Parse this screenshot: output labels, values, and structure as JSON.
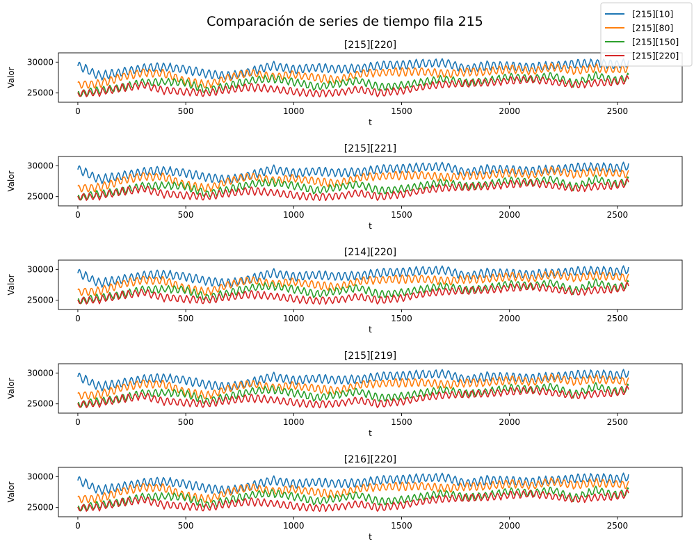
{
  "suptitle": "Comparación de series de tiempo fila 215",
  "legend": {
    "placement": "top-right",
    "entries": [
      {
        "label": "[215][10]",
        "color": "#1f77b4"
      },
      {
        "label": "[215][80]",
        "color": "#ff7f0e"
      },
      {
        "label": "[215][150]",
        "color": "#2ca02c"
      },
      {
        "label": "[215][220]",
        "color": "#d62728"
      }
    ]
  },
  "chart_data": [
    {
      "type": "line",
      "title": "[215][220]",
      "xlabel": "t",
      "ylabel": "Valor",
      "xlim": [
        -90,
        2800
      ],
      "ylim": [
        23500,
        31500
      ],
      "xticks": [
        0,
        500,
        1000,
        1500,
        2000,
        2500
      ],
      "yticks": [
        25000,
        30000
      ],
      "x_step": 100,
      "grid": false,
      "series": [
        {
          "name": "[215][10]",
          "color": "#1f77b4",
          "values": [
            29500,
            27800,
            28300,
            29000,
            29200,
            28800,
            28100,
            27700,
            28500,
            29400,
            28800,
            29100,
            28900,
            29000,
            29400,
            29600,
            29800,
            29900,
            28900,
            29500,
            29300,
            29200,
            29400,
            29700,
            29800,
            29600,
            30200
          ]
        },
        {
          "name": "[215][80]",
          "color": "#ff7f0e",
          "values": [
            26300,
            26500,
            27600,
            28300,
            28200,
            26900,
            26300,
            27500,
            28300,
            27600,
            28000,
            27500,
            27100,
            28100,
            28300,
            28400,
            28500,
            28100,
            28400,
            28500,
            28900,
            28500,
            29200,
            28600,
            29000,
            28800,
            29200
          ]
        },
        {
          "name": "[215][150]",
          "color": "#2ca02c",
          "values": [
            24800,
            25400,
            25900,
            26700,
            26800,
            26700,
            25400,
            26200,
            27000,
            27300,
            26800,
            26000,
            26500,
            27000,
            26000,
            26200,
            26800,
            27300,
            26600,
            27000,
            27600,
            27300,
            27800,
            26500,
            27800,
            27000,
            28200
          ]
        },
        {
          "name": "[215][220]",
          "color": "#d62728",
          "values": [
            24900,
            25100,
            25800,
            26300,
            25400,
            25200,
            25000,
            25600,
            25900,
            25700,
            25200,
            24900,
            25100,
            25600,
            24900,
            25400,
            26000,
            26400,
            26500,
            26700,
            27000,
            27200,
            26800,
            26300,
            26600,
            26800,
            27600
          ]
        }
      ]
    },
    {
      "type": "line",
      "title": "[215][221]",
      "xlabel": "t",
      "ylabel": "Valor",
      "xlim": [
        -90,
        2800
      ],
      "ylim": [
        23500,
        31500
      ],
      "xticks": [
        0,
        500,
        1000,
        1500,
        2000,
        2500
      ],
      "yticks": [
        25000,
        30000
      ],
      "x_step": 100,
      "grid": false,
      "series": [
        {
          "name": "[215][10]",
          "color": "#1f77b4",
          "values": [
            29500,
            27800,
            28300,
            29000,
            29200,
            28800,
            28100,
            27700,
            28500,
            29400,
            28800,
            29100,
            28900,
            29000,
            29400,
            29600,
            29800,
            29900,
            28900,
            29500,
            29300,
            29200,
            29400,
            29700,
            29800,
            29600,
            30400
          ]
        },
        {
          "name": "[215][80]",
          "color": "#ff7f0e",
          "values": [
            26300,
            26500,
            27600,
            28300,
            28200,
            26900,
            26300,
            27500,
            28300,
            27600,
            28000,
            27500,
            27100,
            28100,
            28300,
            28400,
            28500,
            28100,
            28400,
            28500,
            28900,
            28500,
            29200,
            28600,
            29000,
            28800,
            28500
          ]
        },
        {
          "name": "[215][150]",
          "color": "#2ca02c",
          "values": [
            24800,
            25400,
            25900,
            26700,
            26800,
            26700,
            25400,
            26200,
            27000,
            27300,
            26800,
            26000,
            26500,
            27000,
            26000,
            26200,
            26800,
            27300,
            26600,
            27000,
            27600,
            27300,
            27800,
            26500,
            27800,
            27000,
            28200
          ]
        },
        {
          "name": "[215][220]",
          "color": "#d62728",
          "values": [
            24900,
            25100,
            25800,
            26300,
            25400,
            25200,
            25000,
            25600,
            25900,
            25700,
            25200,
            24900,
            25100,
            25600,
            24900,
            25400,
            26000,
            26400,
            26500,
            26700,
            27000,
            27200,
            26800,
            26300,
            26600,
            26800,
            27800
          ]
        }
      ]
    },
    {
      "type": "line",
      "title": "[214][220]",
      "xlabel": "t",
      "ylabel": "Valor",
      "xlim": [
        -90,
        2800
      ],
      "ylim": [
        23500,
        31500
      ],
      "xticks": [
        0,
        500,
        1000,
        1500,
        2000,
        2500
      ],
      "yticks": [
        25000,
        30000
      ],
      "x_step": 100,
      "grid": false,
      "series": [
        {
          "name": "[215][10]",
          "color": "#1f77b4",
          "values": [
            29500,
            27800,
            28300,
            29000,
            29200,
            28800,
            28100,
            27700,
            28500,
            29400,
            28800,
            29100,
            28900,
            29000,
            29400,
            29600,
            29800,
            29900,
            28900,
            29500,
            29300,
            29200,
            29400,
            29700,
            29800,
            29600,
            30400
          ]
        },
        {
          "name": "[215][80]",
          "color": "#ff7f0e",
          "values": [
            26300,
            26500,
            27600,
            28300,
            28200,
            26900,
            26300,
            27500,
            28300,
            27600,
            28000,
            27500,
            27100,
            28100,
            28300,
            28400,
            28500,
            28100,
            28400,
            28500,
            28900,
            28500,
            29200,
            28600,
            29000,
            28800,
            28500
          ]
        },
        {
          "name": "[215][150]",
          "color": "#2ca02c",
          "values": [
            24800,
            25400,
            25900,
            26700,
            26800,
            26700,
            25400,
            26200,
            27000,
            27300,
            26800,
            26000,
            26500,
            27000,
            26000,
            26200,
            26800,
            27300,
            26600,
            27000,
            27600,
            27300,
            27800,
            26500,
            27800,
            27000,
            28200
          ]
        },
        {
          "name": "[215][220]",
          "color": "#d62728",
          "values": [
            24900,
            25100,
            25800,
            26300,
            25400,
            25200,
            25000,
            25600,
            25900,
            25700,
            25200,
            24900,
            25100,
            25600,
            24900,
            25400,
            26000,
            26400,
            26500,
            26700,
            27000,
            27200,
            26800,
            26300,
            26600,
            26800,
            27800
          ]
        }
      ]
    },
    {
      "type": "line",
      "title": "[215][219]",
      "xlabel": "t",
      "ylabel": "Valor",
      "xlim": [
        -90,
        2800
      ],
      "ylim": [
        23500,
        31500
      ],
      "xticks": [
        0,
        500,
        1000,
        1500,
        2000,
        2500
      ],
      "yticks": [
        25000,
        30000
      ],
      "x_step": 100,
      "grid": false,
      "series": [
        {
          "name": "[215][10]",
          "color": "#1f77b4",
          "values": [
            29500,
            27800,
            28300,
            29000,
            29200,
            28800,
            28100,
            27700,
            28500,
            29400,
            28800,
            29100,
            28900,
            29000,
            29400,
            29600,
            29800,
            29900,
            28900,
            29500,
            29300,
            29200,
            29400,
            29700,
            29800,
            29600,
            30400
          ]
        },
        {
          "name": "[215][80]",
          "color": "#ff7f0e",
          "values": [
            26300,
            26500,
            27600,
            28300,
            28200,
            26900,
            26300,
            27500,
            28300,
            27600,
            28000,
            27500,
            27100,
            28100,
            28300,
            28400,
            28500,
            28100,
            28400,
            28500,
            28900,
            28500,
            29200,
            28600,
            29000,
            28800,
            28500
          ]
        },
        {
          "name": "[215][150]",
          "color": "#2ca02c",
          "values": [
            24800,
            25400,
            25900,
            26700,
            26800,
            26700,
            25400,
            26200,
            27000,
            27300,
            26800,
            26000,
            26500,
            27000,
            26000,
            26200,
            26800,
            27300,
            26600,
            27000,
            27600,
            27300,
            27800,
            26500,
            27800,
            27000,
            28200
          ]
        },
        {
          "name": "[215][220]",
          "color": "#d62728",
          "values": [
            24900,
            25100,
            25800,
            26300,
            25400,
            25200,
            25000,
            25600,
            25900,
            25700,
            25200,
            24900,
            25100,
            25600,
            24900,
            25400,
            26000,
            26400,
            26500,
            26700,
            27000,
            27200,
            26800,
            26300,
            26600,
            26800,
            27800
          ]
        }
      ]
    },
    {
      "type": "line",
      "title": "[216][220]",
      "xlabel": "t",
      "ylabel": "Valor",
      "xlim": [
        -90,
        2800
      ],
      "ylim": [
        23500,
        31500
      ],
      "xticks": [
        0,
        500,
        1000,
        1500,
        2000,
        2500
      ],
      "yticks": [
        25000,
        30000
      ],
      "x_step": 100,
      "grid": false,
      "series": [
        {
          "name": "[215][10]",
          "color": "#1f77b4",
          "values": [
            29500,
            27800,
            28300,
            29000,
            29200,
            28800,
            28100,
            27700,
            28500,
            29400,
            28800,
            29100,
            28900,
            29000,
            29400,
            29600,
            29800,
            29900,
            28900,
            29500,
            29300,
            29200,
            29400,
            29700,
            29800,
            29600,
            30400
          ]
        },
        {
          "name": "[215][80]",
          "color": "#ff7f0e",
          "values": [
            26300,
            26500,
            27600,
            28300,
            28200,
            26900,
            26300,
            27500,
            28300,
            27600,
            28000,
            27500,
            27100,
            28100,
            28300,
            28400,
            28500,
            28100,
            28400,
            28500,
            28900,
            28500,
            29200,
            28600,
            29000,
            28800,
            28500
          ]
        },
        {
          "name": "[215][150]",
          "color": "#2ca02c",
          "values": [
            24800,
            25400,
            25900,
            26700,
            26800,
            26700,
            25400,
            26200,
            27000,
            27300,
            26800,
            26000,
            26500,
            27000,
            26000,
            26200,
            26800,
            27300,
            26600,
            27000,
            27600,
            27300,
            27800,
            26500,
            27800,
            27000,
            28200
          ]
        },
        {
          "name": "[215][220]",
          "color": "#d62728",
          "values": [
            24900,
            25100,
            25800,
            26300,
            25400,
            25200,
            25000,
            25600,
            25900,
            25700,
            25200,
            24900,
            25100,
            25600,
            24900,
            25400,
            26000,
            26400,
            26500,
            26700,
            27000,
            27200,
            26800,
            26300,
            26600,
            26800,
            27800
          ]
        }
      ]
    }
  ]
}
